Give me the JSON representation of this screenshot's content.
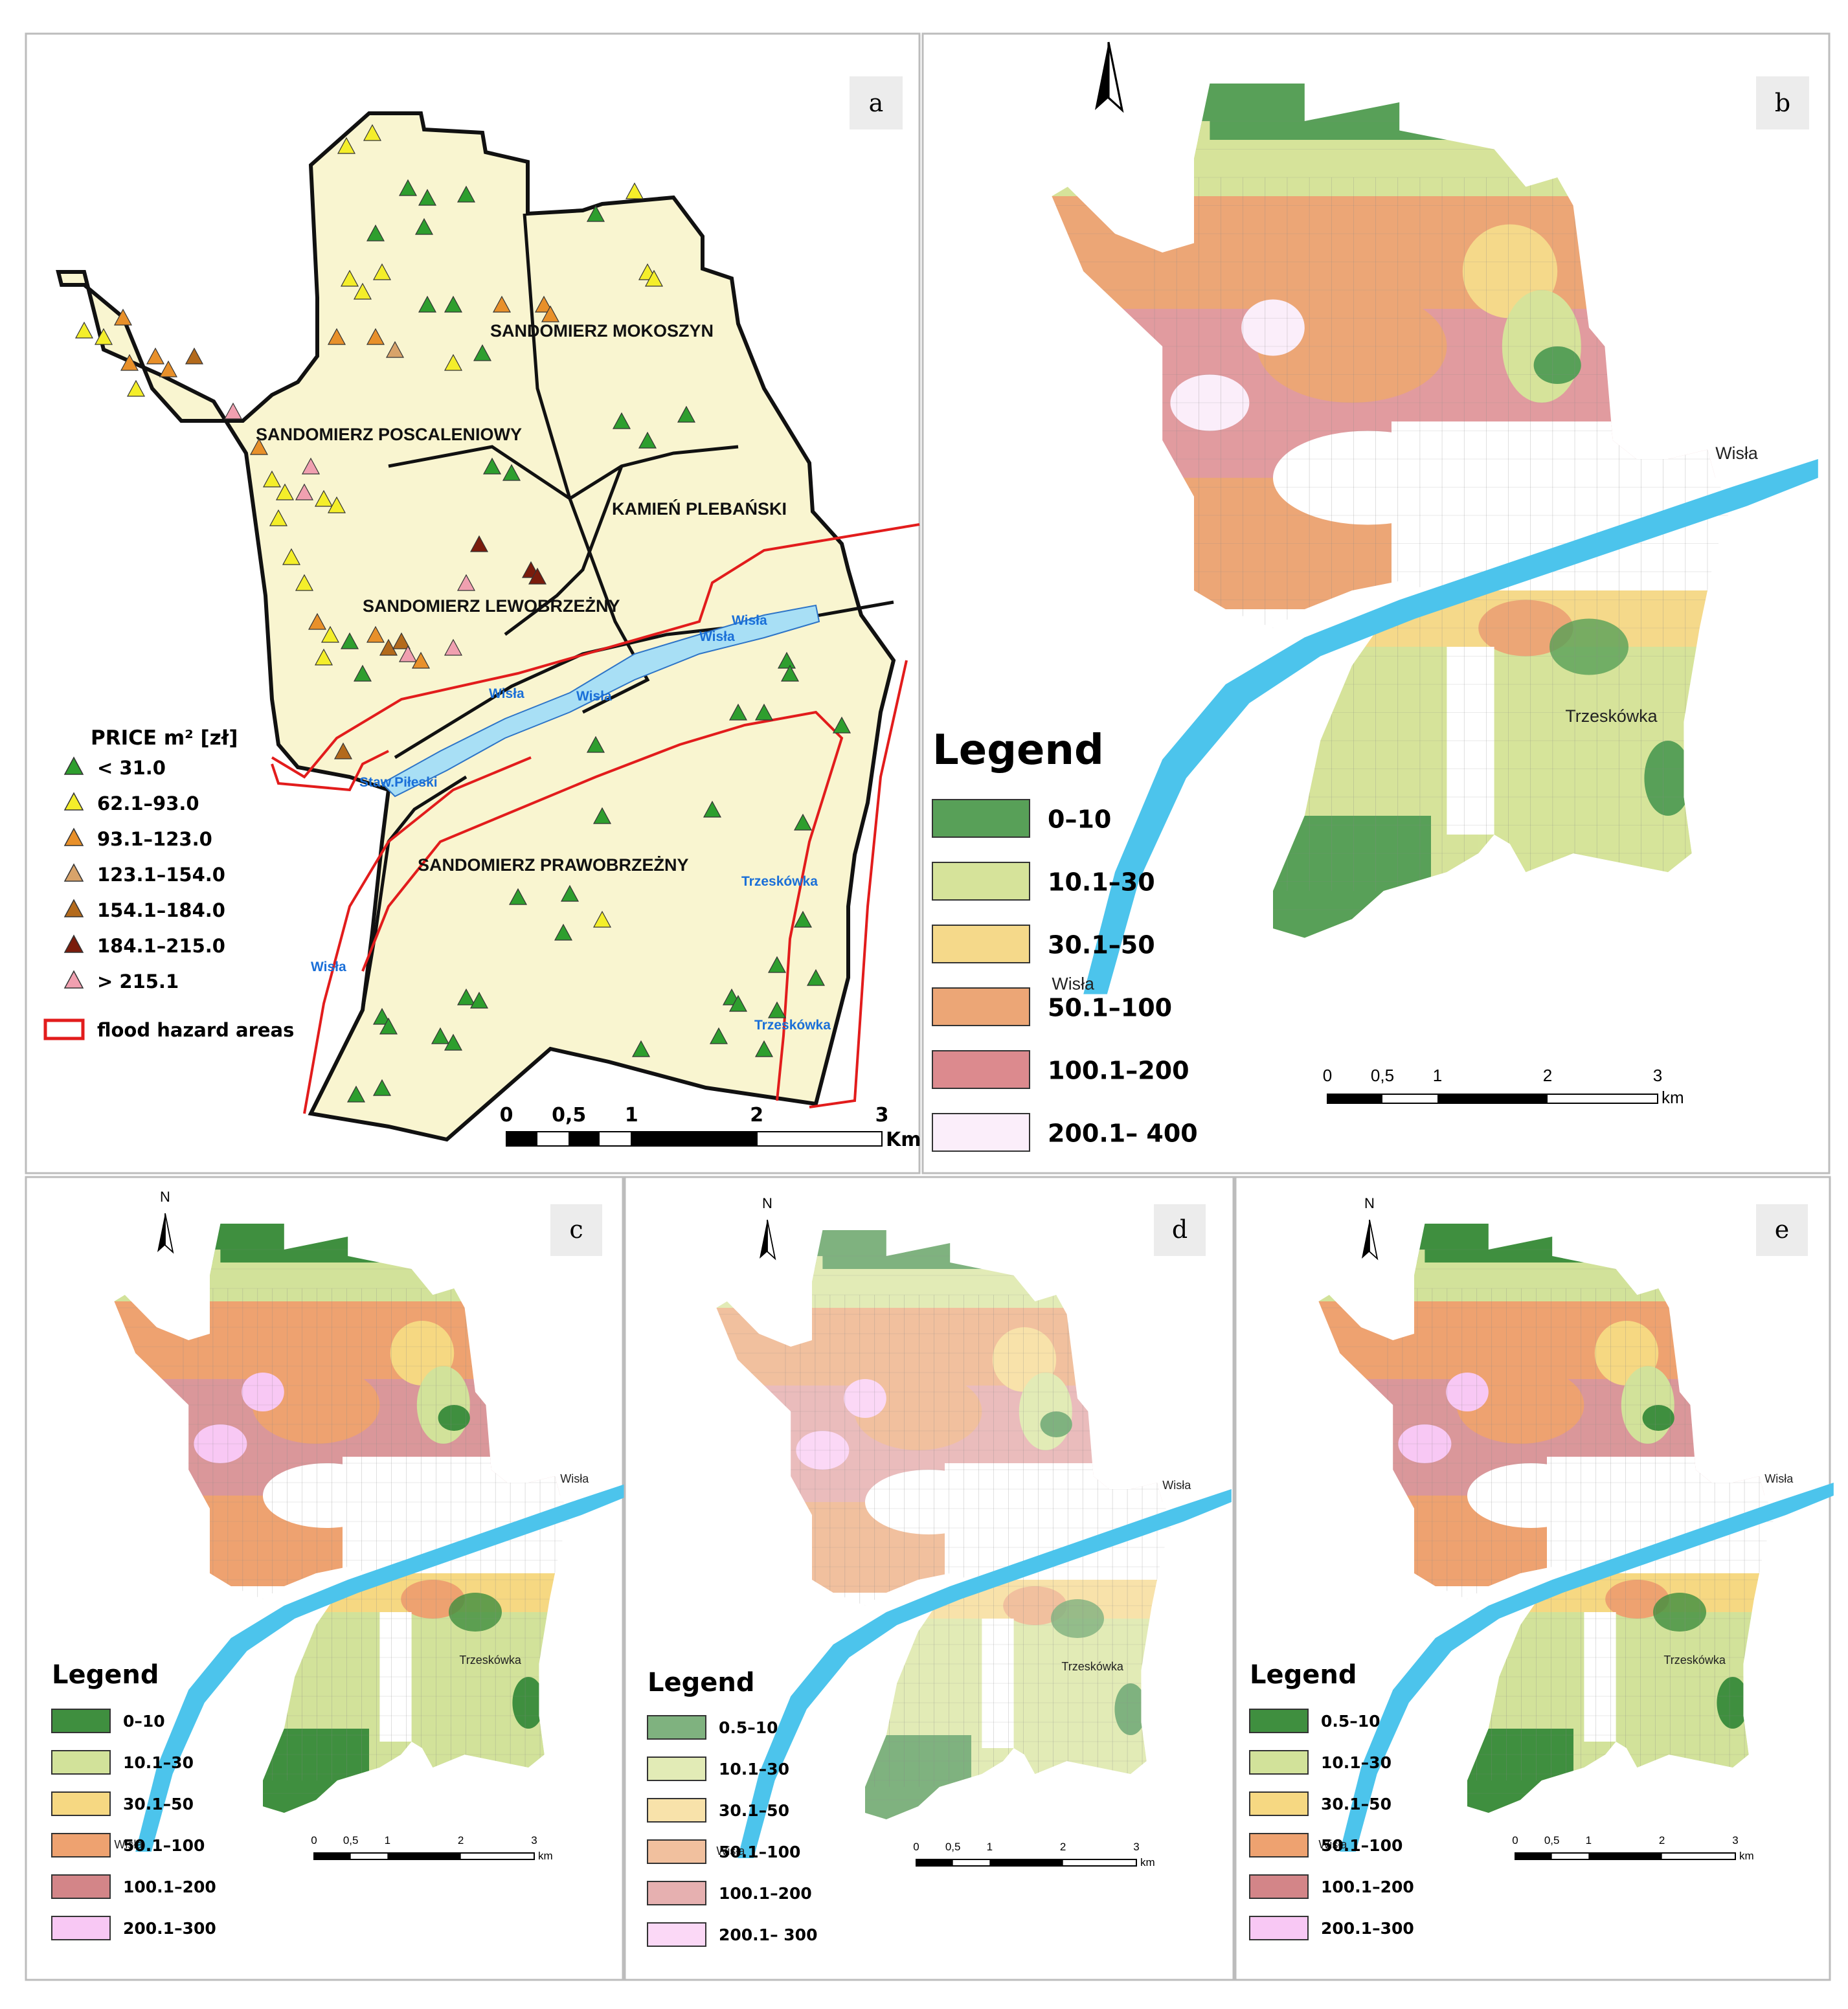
{
  "panels": {
    "a": {
      "letter": "a",
      "districts": [
        "SANDOMIERZ MOKOSZYN",
        "SANDOMIERZ POSCALENIOWY",
        "KAMIEŃ PLEBAŃSKI",
        "SANDOMIERZ LEWOBRZEŻNY",
        "SANDOMIERZ PRAWOBRZEŻNY"
      ],
      "place_labels": [
        "Wisła",
        "Wisła",
        "Wisła",
        "Wisła",
        "Wisła",
        "Staw.Piłeski",
        "Trzeskówka",
        "Trzeskówka"
      ],
      "legend": {
        "title": "PRICE m² [zł]",
        "items": [
          {
            "label": "< 31.0",
            "color": "#2e9e2e"
          },
          {
            "label": "62.1–93.0",
            "color": "#f4ee2a"
          },
          {
            "label": "93.1–123.0",
            "color": "#e8902a"
          },
          {
            "label": "123.1–154.0",
            "color": "#d8a36a"
          },
          {
            "label": "154.1–184.0",
            "color": "#b36a1c"
          },
          {
            "label": "184.1–215.0",
            "color": "#7a1c0c"
          },
          {
            "label": "> 215.1",
            "color": "#f0a0b0"
          }
        ],
        "flood_label": "flood hazard areas"
      },
      "scale": {
        "ticks": [
          "0",
          "0,5",
          "1",
          "2",
          "3"
        ],
        "unit": "Km"
      }
    },
    "b": {
      "letter": "b",
      "legend_title": "Legend",
      "legend": [
        {
          "label": "0–10",
          "color": "#58a058"
        },
        {
          "label": "10.1–30",
          "color": "#d6e39a"
        },
        {
          "label": "30.1–50",
          "color": "#f5d98a"
        },
        {
          "label": "50.1–100",
          "color": "#eca676"
        },
        {
          "label": "100.1–200",
          "color": "#dc8a8e"
        },
        {
          "label": "200.1– 400",
          "color": "#fbeefa"
        }
      ],
      "place_labels": [
        "Wisła",
        "Wisła",
        "Trzeskówka"
      ],
      "scale": {
        "ticks": [
          "0",
          "0,5",
          "1",
          "2",
          "3"
        ],
        "unit": "km"
      }
    },
    "c": {
      "letter": "c",
      "north": "N",
      "legend_title": "Legend",
      "legend": [
        {
          "label": "0–10",
          "color": "#3f8f3f"
        },
        {
          "label": "10.1–30",
          "color": "#d2e29a"
        },
        {
          "label": "30.1–50",
          "color": "#f6d882"
        },
        {
          "label": "50.1–100",
          "color": "#eea270"
        },
        {
          "label": "100.1–200",
          "color": "#d38588"
        },
        {
          "label": "200.1–300",
          "color": "#f8c8f4"
        }
      ],
      "place_labels": [
        "Wisła",
        "Wisła",
        "Trzeskówka"
      ],
      "scale": {
        "ticks": [
          "0",
          "0,5",
          "1",
          "2",
          "3"
        ],
        "unit": "km"
      }
    },
    "d": {
      "letter": "d",
      "north": "N",
      "legend_title": "Legend",
      "legend": [
        {
          "label": "0.5–10",
          "color": "#7fb27f"
        },
        {
          "label": "10.1–30",
          "color": "#e2ebb6"
        },
        {
          "label": "30.1–50",
          "color": "#f8e2aa"
        },
        {
          "label": "50.1–100",
          "color": "#f1c09e"
        },
        {
          "label": "100.1–200",
          "color": "#e6b0b0"
        },
        {
          "label": "200.1– 300",
          "color": "#fbd8f6"
        }
      ],
      "place_labels": [
        "Wisła",
        "Wisła",
        "Trzeskówka"
      ],
      "scale": {
        "ticks": [
          "0",
          "0,5",
          "1",
          "2",
          "3"
        ],
        "unit": "km"
      }
    },
    "e": {
      "letter": "e",
      "north": "N",
      "legend_title": "Legend",
      "legend": [
        {
          "label": "0.5–10",
          "color": "#3f8f3f"
        },
        {
          "label": "10.1–30",
          "color": "#d2e29a"
        },
        {
          "label": "30.1–50",
          "color": "#f6d882"
        },
        {
          "label": "50.1–100",
          "color": "#eea270"
        },
        {
          "label": "100.1–200",
          "color": "#d38588"
        },
        {
          "label": "200.1–300",
          "color": "#f8c8f4"
        }
      ],
      "place_labels": [
        "Wisła",
        "Wisła",
        "Trzeskówka"
      ],
      "scale": {
        "ticks": [
          "0",
          "0,5",
          "1",
          "2",
          "3"
        ],
        "unit": "km"
      }
    }
  }
}
